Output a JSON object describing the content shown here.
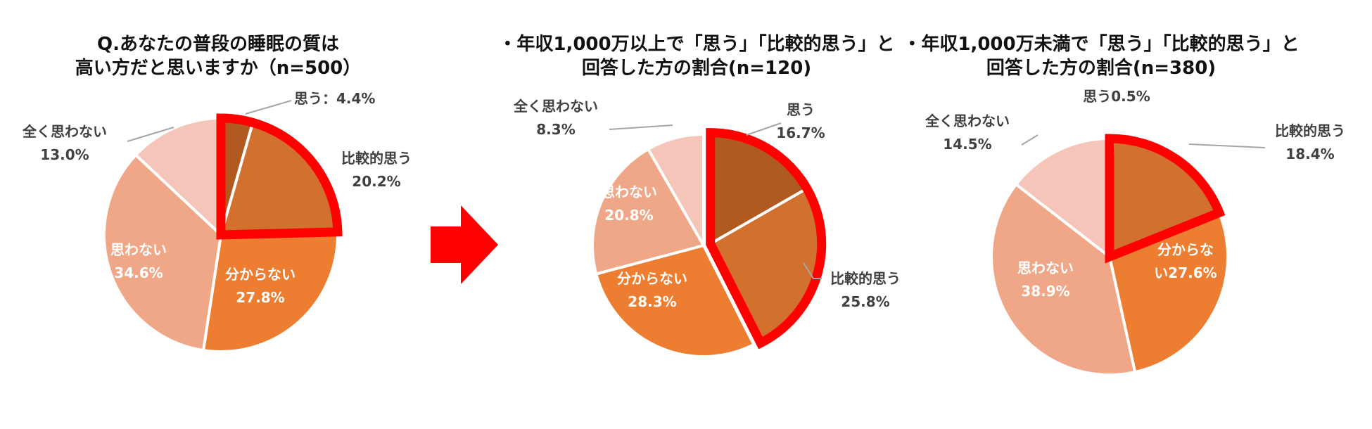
{
  "colors": {
    "omou": "#B05A22",
    "hikaku": "#D2702E",
    "wakaranai": "#ED7D31",
    "omowanai": "#F0A788",
    "mattaku": "#F4C5B8",
    "highlight": "#FF0000",
    "arrow": "#FF0000"
  },
  "arrow_icon": "right-arrow-icon",
  "chart_data": [
    {
      "type": "pie",
      "title": [
        "Q.あなたの普段の睡眠の質は",
        "高い方だと思いますか（n=500）"
      ],
      "labels": [
        "思う",
        "比較的思う",
        "分からない",
        "思わない",
        "全く思わない"
      ],
      "values": [
        4.4,
        20.2,
        27.8,
        34.6,
        13.0
      ],
      "label_text": [
        [
          "思う：4.4%"
        ],
        [
          "比較的思う",
          "20.2%"
        ],
        [
          "分からない",
          "27.8%"
        ],
        [
          "思わない",
          "34.6%"
        ],
        [
          "全く思わない",
          "13.0%"
        ]
      ],
      "highlight": [
        0,
        1
      ]
    },
    {
      "type": "pie",
      "title": [
        "・年収1,000万以上で「思う」「比較的思う」と",
        "回答した方の割合(n=120)"
      ],
      "labels": [
        "思う",
        "比較的思う",
        "分からない",
        "思わない",
        "全く思わない"
      ],
      "values": [
        16.7,
        25.8,
        28.3,
        20.8,
        8.3
      ],
      "label_text": [
        [
          "思う",
          "16.7%"
        ],
        [
          "比較的思う",
          "25.8%"
        ],
        [
          "分からない",
          "28.3%"
        ],
        [
          "思わない",
          "20.8%"
        ],
        [
          "全く思わない",
          "8.3%"
        ]
      ],
      "highlight": [
        0,
        1
      ]
    },
    {
      "type": "pie",
      "title": [
        "・年収1,000万未満で「思う」「比較的思う」と",
        "回答した方の割合(n=380)"
      ],
      "labels": [
        "思う",
        "比較的思う",
        "分からない",
        "思わない",
        "全く思わない"
      ],
      "values": [
        0.5,
        18.4,
        27.6,
        38.9,
        14.5
      ],
      "label_text": [
        [
          "思う0.5%"
        ],
        [
          "比較的思う",
          "18.4%"
        ],
        [
          "分からな",
          "い27.6%"
        ],
        [
          "思わない",
          "38.9%"
        ],
        [
          "全く思わない",
          "14.5%"
        ]
      ],
      "highlight": [
        0,
        1
      ]
    }
  ]
}
